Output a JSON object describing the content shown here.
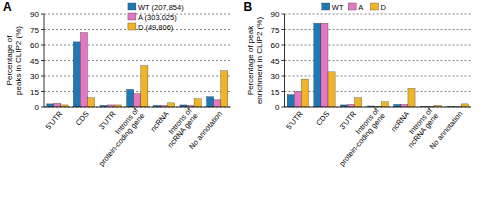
{
  "chart_data": [
    {
      "type": "bar",
      "title": "A",
      "y_label": "Percentage of peaks in CLIP2 (%)",
      "categories": [
        "5'UTR",
        "CDS",
        "3'UTR",
        "Introns of protein-coding gene",
        "ncRNA",
        "Introns of ncRNA gene",
        "No annotation"
      ],
      "series": [
        {
          "name": "WT (207,854)",
          "color": "#1f77b4",
          "values": [
            3,
            63,
            1.5,
            17,
            1.5,
            2,
            10
          ]
        },
        {
          "name": "A (303,025)",
          "color": "#e377c2",
          "values": [
            3.5,
            72,
            2,
            13,
            1.5,
            1.5,
            7
          ]
        },
        {
          "name": "D (49,806)",
          "color": "#f0b429",
          "values": [
            2,
            9,
            2,
            40,
            4,
            8,
            35
          ]
        }
      ],
      "ylim": [
        0,
        90
      ],
      "yticks": [
        0,
        15,
        30,
        45,
        60,
        75,
        90
      ],
      "grid": true,
      "legend": "top"
    },
    {
      "type": "bar",
      "title": "B",
      "y_label": "Percentage of peak enrichment in CLIP2 (%)",
      "categories": [
        "5'UTR",
        "CDS",
        "3'UTR",
        "Introns of protein-coding gene",
        "ncRNA",
        "Introns of ncRNA gene",
        "No annotation"
      ],
      "series": [
        {
          "name": "WT",
          "color": "#1f77b4",
          "values": [
            12,
            81,
            2,
            1,
            2.5,
            0.5,
            0.5
          ]
        },
        {
          "name": "A",
          "color": "#e377c2",
          "values": [
            15,
            81,
            2.5,
            0.5,
            2.5,
            0.5,
            0.5
          ]
        },
        {
          "name": "D",
          "color": "#f0b429",
          "values": [
            27,
            34,
            9,
            5,
            18,
            1.5,
            3
          ]
        }
      ],
      "ylim": [
        0,
        90
      ],
      "yticks": [
        0,
        15,
        30,
        45,
        60,
        75,
        90
      ],
      "grid": true,
      "legend": "top"
    }
  ]
}
